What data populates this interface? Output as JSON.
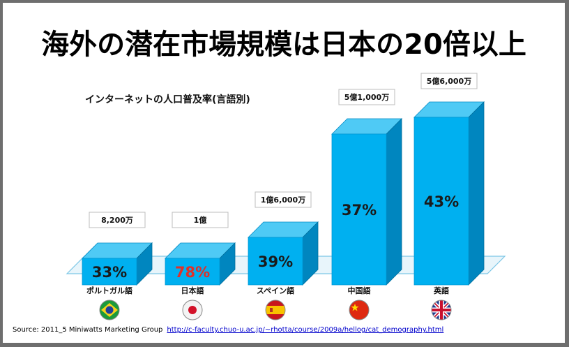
{
  "title": "海外の潜在市場規模は日本の20倍以上",
  "chart_data": {
    "type": "bar",
    "title": "インターネットの人口普及率(言語別)",
    "categories": [
      "ポルトガル語",
      "日本語",
      "スペイン語",
      "中国語",
      "英語"
    ],
    "values": [
      33,
      78,
      39,
      37,
      43
    ],
    "value_labels": [
      "33%",
      "78%",
      "39%",
      "37%",
      "43%"
    ],
    "population_labels": [
      "8,200万",
      "1億",
      "1億6,000万",
      "5億1,000万",
      "5億6,000万"
    ],
    "flag_icons": [
      "brazil-flag-icon",
      "japan-flag-icon",
      "spain-flag-icon",
      "china-flag-icon",
      "uk-flag-icon"
    ],
    "bar_color": "#00b0f0",
    "highlight_value_color": "#e0302a"
  },
  "source": {
    "text": "Source: 2011_5 Miniwatts Marketing Group",
    "link": "http://c-faculty.chuo-u.ac.jp/~rhotta/course/2009a/hellog/cat_demography.html"
  }
}
